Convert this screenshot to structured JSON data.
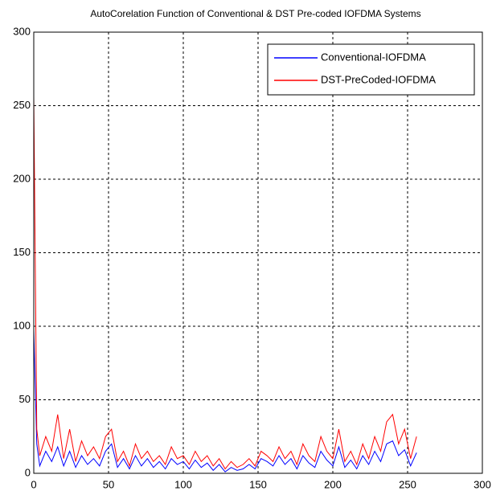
{
  "chart_data": {
    "type": "line",
    "title": "AutoCorelation Function of Conventional & DST Pre-coded IOFDMA Systems",
    "x": [
      0,
      2,
      4,
      8,
      12,
      16,
      20,
      24,
      28,
      32,
      36,
      40,
      44,
      48,
      52,
      56,
      60,
      64,
      68,
      72,
      76,
      80,
      84,
      88,
      92,
      96,
      100,
      104,
      108,
      112,
      116,
      120,
      124,
      128,
      132,
      136,
      140,
      144,
      148,
      152,
      156,
      160,
      164,
      168,
      172,
      176,
      180,
      184,
      188,
      192,
      196,
      200,
      204,
      208,
      212,
      216,
      220,
      224,
      228,
      232,
      236,
      240,
      244,
      248,
      252,
      256
    ],
    "series": [
      {
        "name": "Conventional-IOFDMA",
        "color": "#0000ff",
        "values": [
          98,
          20,
          5,
          15,
          8,
          18,
          5,
          15,
          4,
          12,
          6,
          10,
          5,
          15,
          20,
          4,
          10,
          3,
          12,
          5,
          10,
          4,
          8,
          3,
          10,
          6,
          8,
          3,
          9,
          4,
          7,
          2,
          6,
          1,
          4,
          2,
          3,
          6,
          3,
          10,
          8,
          5,
          12,
          6,
          10,
          3,
          12,
          7,
          4,
          15,
          9,
          5,
          18,
          4,
          9,
          3,
          12,
          6,
          15,
          8,
          20,
          22,
          12,
          16,
          5,
          14
        ]
      },
      {
        "name": "DST-PreCoded-IOFDMA",
        "color": "#ff0000",
        "values": [
          256,
          30,
          12,
          25,
          15,
          40,
          10,
          30,
          8,
          22,
          12,
          18,
          10,
          25,
          30,
          8,
          15,
          5,
          20,
          10,
          15,
          8,
          12,
          6,
          18,
          10,
          12,
          6,
          15,
          8,
          12,
          5,
          10,
          3,
          8,
          4,
          6,
          10,
          5,
          15,
          12,
          8,
          18,
          10,
          15,
          6,
          20,
          12,
          8,
          25,
          15,
          10,
          30,
          8,
          15,
          6,
          20,
          10,
          25,
          15,
          35,
          40,
          20,
          30,
          10,
          25
        ]
      }
    ],
    "xlim": [
      0,
      300
    ],
    "xticks": [
      0,
      50,
      100,
      150,
      200,
      250,
      300
    ],
    "ylim": [
      0,
      300
    ],
    "yticks": [
      0,
      50,
      100,
      150,
      200,
      250,
      300
    ],
    "grid": true,
    "legend": "northeast"
  }
}
